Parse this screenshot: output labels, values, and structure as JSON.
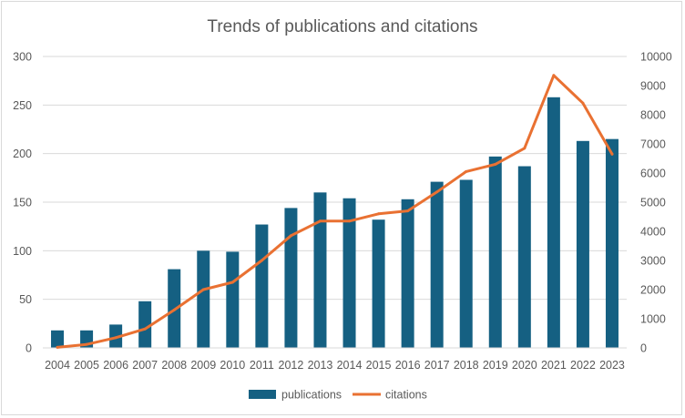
{
  "chart_data": {
    "type": "bar",
    "title": "Trends of publications and citations",
    "categories": [
      "2004",
      "2005",
      "2006",
      "2007",
      "2008",
      "2009",
      "2010",
      "2011",
      "2012",
      "2013",
      "2014",
      "2015",
      "2016",
      "2017",
      "2018",
      "2019",
      "2020",
      "2021",
      "2022",
      "2023"
    ],
    "series": [
      {
        "name": "publications",
        "type": "bar",
        "axis": "left",
        "color": "#156082",
        "values": [
          18,
          18,
          24,
          48,
          81,
          100,
          99,
          127,
          144,
          160,
          154,
          132,
          153,
          171,
          173,
          197,
          187,
          258,
          213,
          215
        ]
      },
      {
        "name": "citations",
        "type": "line",
        "axis": "right",
        "color": "#E97132",
        "values": [
          20,
          120,
          350,
          650,
          1300,
          2000,
          2250,
          3000,
          3850,
          4350,
          4350,
          4600,
          4700,
          5350,
          6050,
          6300,
          6850,
          9350,
          8400,
          6650
        ]
      }
    ],
    "y_left": {
      "min": 0,
      "max": 300,
      "ticks": [
        "0",
        "50",
        "100",
        "150",
        "200",
        "250",
        "300"
      ]
    },
    "y_right": {
      "min": 0,
      "max": 10000,
      "ticks": [
        "0",
        "1000",
        "2000",
        "3000",
        "4000",
        "5000",
        "6000",
        "7000",
        "8000",
        "9000",
        "10000"
      ]
    },
    "grid": true,
    "legend_position": "bottom"
  }
}
